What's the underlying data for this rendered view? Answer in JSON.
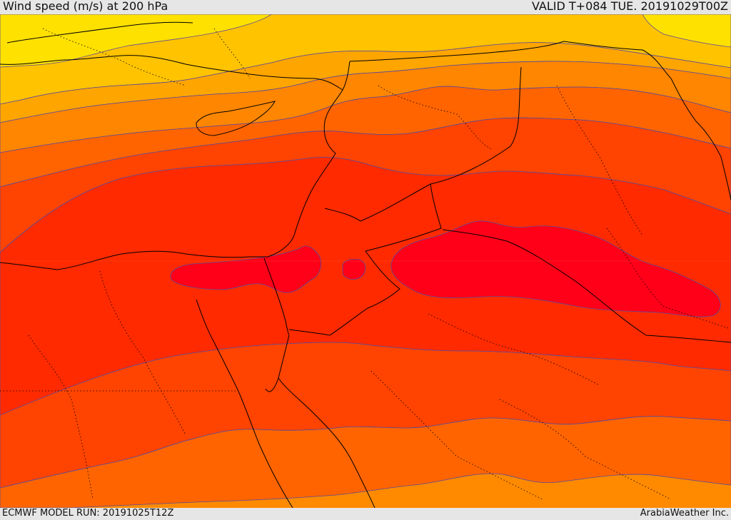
{
  "header": {
    "title": "Wind speed (m/s) at 200 hPa",
    "valid": "VALID T+084 TUE. 20191029T00Z"
  },
  "footer": {
    "model_run": "ECMWF MODEL RUN: 20191025T12Z",
    "credit": "ArabiaWeather Inc."
  },
  "colors": {
    "band_1": "#ffe100",
    "band_2": "#ffc300",
    "band_3": "#ffa500",
    "band_4": "#ff8600",
    "band_5": "#ff6400",
    "band_6": "#ff4300",
    "band_7": "#ff2a00",
    "band_8": "#ff1400",
    "core": "#ff0018",
    "contour": "#5a4a9a",
    "border": "#000000"
  }
}
